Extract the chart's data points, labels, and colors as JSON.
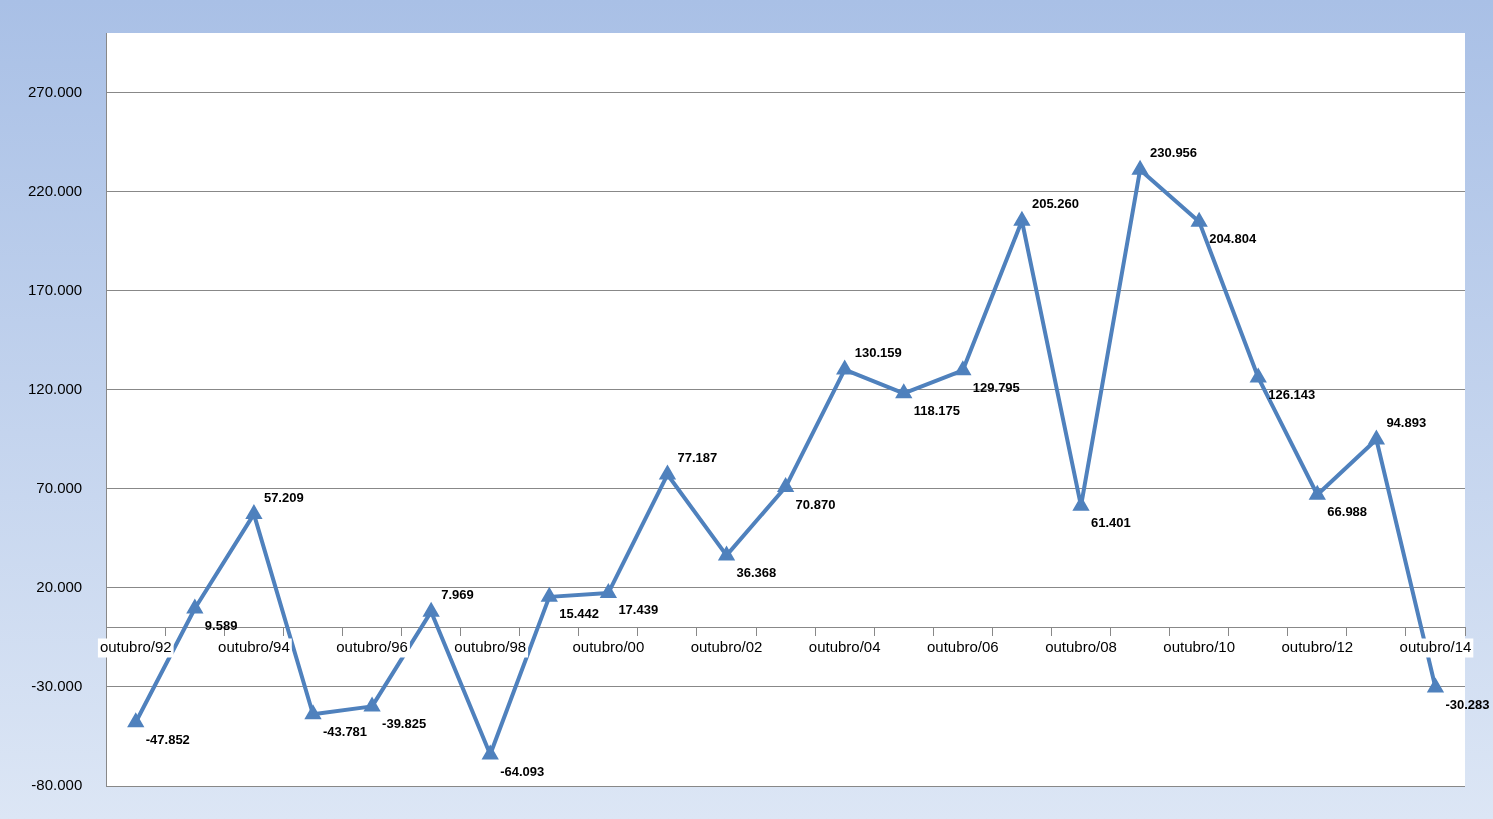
{
  "chart_data": {
    "type": "line",
    "categories": [
      "outubro/92",
      null,
      "outubro/94",
      null,
      "outubro/96",
      null,
      "outubro/98",
      null,
      "outubro/00",
      null,
      "outubro/02",
      null,
      "outubro/04",
      null,
      "outubro/06",
      null,
      "outubro/08",
      null,
      "outubro/10",
      null,
      "outubro/12",
      null,
      "outubro/14"
    ],
    "series": [
      {
        "color": "#4f81bd",
        "values": [
          -47852,
          9589,
          57209,
          -43781,
          -39825,
          7969,
          -64093,
          15442,
          17439,
          77187,
          36368,
          70870,
          130159,
          118175,
          129795,
          205260,
          61401,
          230956,
          204804,
          126143,
          66988,
          94893,
          -30283
        ],
        "value_labels": [
          "-47.852",
          "9.589",
          "57.209",
          "-43.781",
          "-39.825",
          "7.969",
          "-64.093",
          "15.442",
          "17.439",
          "77.187",
          "36.368",
          "70.870",
          "130.159",
          "118.175",
          "129.795",
          "205.260",
          "61.401",
          "230.956",
          "204.804",
          "126.143",
          "66.988",
          "94.893",
          "-30.283"
        ]
      }
    ],
    "ylim": [
      -80000,
      300000
    ],
    "yticks": [
      {
        "value": -80000,
        "label": "-80.000"
      },
      {
        "value": -30000,
        "label": "-30.000"
      },
      {
        "value": 20000,
        "label": "20.000"
      },
      {
        "value": 70000,
        "label": "70.000"
      },
      {
        "value": 120000,
        "label": "120.000"
      },
      {
        "value": 170000,
        "label": "170.000"
      },
      {
        "value": 220000,
        "label": "220.000"
      },
      {
        "value": 270000,
        "label": "270.000"
      }
    ],
    "grid": "y",
    "legend": false,
    "marker": "triangle",
    "line_style": "solid"
  }
}
